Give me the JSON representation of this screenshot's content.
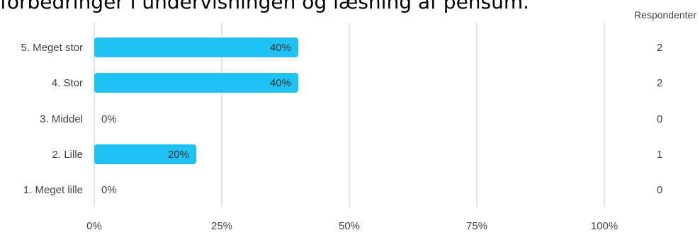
{
  "title_partial": "forbedringer i undervisningen og læsning af pensum.",
  "respondents_header": "Respondenter",
  "chart_data": {
    "type": "bar",
    "orientation": "horizontal",
    "categories": [
      "5. Meget stor",
      "4. Stor",
      "3. Middel",
      "2. Lille",
      "1. Meget lille"
    ],
    "values": [
      40,
      40,
      0,
      20,
      0
    ],
    "value_labels": [
      "40%",
      "40%",
      "0%",
      "20%",
      "0%"
    ],
    "respondents": [
      2,
      2,
      0,
      1,
      0
    ],
    "x_ticks": [
      "0%",
      "25%",
      "50%",
      "75%",
      "100%"
    ],
    "xlim": [
      0,
      100
    ],
    "grid": true,
    "bar_color": "#1ec3f3"
  }
}
